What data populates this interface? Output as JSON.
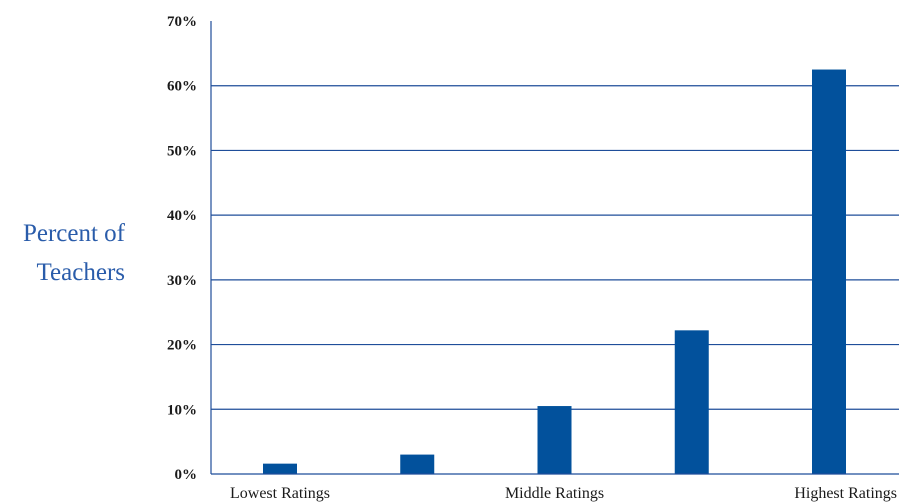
{
  "chart_data": {
    "type": "bar",
    "title": "",
    "xlabel": "",
    "ylabel_lines": [
      "Percent of",
      "Teachers"
    ],
    "ylim": [
      0,
      70
    ],
    "yticks": [
      0,
      10,
      20,
      30,
      40,
      50,
      60,
      70
    ],
    "ytick_labels": [
      "0%",
      "10%",
      "20%",
      "30%",
      "40%",
      "50%",
      "60%",
      "70%"
    ],
    "values": [
      1.6,
      3.0,
      10.5,
      22.2,
      62.5
    ],
    "category_labels": [
      "Lowest Ratings",
      "Middle Ratings",
      "Highest Ratings"
    ],
    "grid": true,
    "legend": "none",
    "colors": {
      "bar": "#02519c",
      "axis": "#1f4e9a",
      "ylabel": "#2a5caa"
    }
  }
}
